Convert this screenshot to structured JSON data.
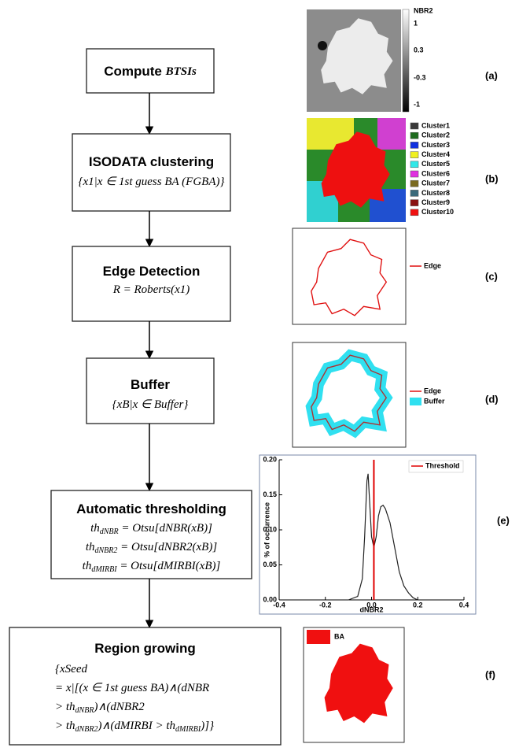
{
  "steps": [
    {
      "title": "Compute",
      "title_math": "BTSIs"
    },
    {
      "title": "ISODATA clustering",
      "formula": [
        [
          "{x1|x ∈ 1st guess BA (FGBA)}"
        ]
      ]
    },
    {
      "title": "Edge Detection",
      "formula": [
        [
          "R = Roberts(x1)"
        ]
      ]
    },
    {
      "title": "Buffer",
      "formula": [
        [
          "{xB|x ∈ Buffer}"
        ]
      ]
    },
    {
      "title": "Automatic thresholding",
      "formula": [
        [
          "th",
          "dNBR",
          " = Otsu[dNBR(xB)]"
        ],
        [
          "th",
          "dNBR2",
          " = Otsu[dNBR2(xB)]"
        ],
        [
          "th",
          "dMIRBI",
          " = Otsu[dMIRBI(xB)]"
        ]
      ]
    },
    {
      "title": "Region growing",
      "formula": [
        [
          "{xSeed"
        ],
        [
          "= x|[(x ∈ 1st guess BA)∧(dNBR"
        ],
        [
          "> th",
          "dNBR",
          ")∧(dNBR2"
        ],
        [
          "> th",
          "dNBR2",
          ")∧(dMIRBI > th",
          "dMIRBI",
          ")]}"
        ]
      ]
    }
  ],
  "panels": {
    "a": {
      "label": "(a)",
      "colorbar_title": "NBR2",
      "colorbar_ticks": [
        "1",
        "0.3",
        "-0.3",
        "-1"
      ]
    },
    "b": {
      "label": "(b)",
      "legend": [
        {
          "name": "Cluster1",
          "color": "#3a3a3a"
        },
        {
          "name": "Cluster2",
          "color": "#1e6b1e"
        },
        {
          "name": "Cluster3",
          "color": "#1030e0"
        },
        {
          "name": "Cluster4",
          "color": "#f0f020"
        },
        {
          "name": "Cluster5",
          "color": "#30e8e8"
        },
        {
          "name": "Cluster6",
          "color": "#e030e0"
        },
        {
          "name": "Cluster7",
          "color": "#7a6a20"
        },
        {
          "name": "Cluster8",
          "color": "#3a6a7a"
        },
        {
          "name": "Cluster9",
          "color": "#8a1010"
        },
        {
          "name": "Cluster10",
          "color": "#f01010"
        }
      ]
    },
    "c": {
      "label": "(c)",
      "legend": [
        "Edge"
      ]
    },
    "d": {
      "label": "(d)",
      "legend": [
        "Edge",
        "Buffer"
      ]
    },
    "e": {
      "label": "(e)"
    },
    "f": {
      "label": "(f)",
      "legend": [
        "BA"
      ]
    }
  },
  "chart_data": {
    "type": "line",
    "x_label": "dNBR2",
    "y_label": "% of occurrence",
    "x": [
      -0.1,
      -0.06,
      -0.04,
      -0.03,
      -0.02,
      -0.015,
      -0.01,
      0.0,
      0.01,
      0.02,
      0.03,
      0.04,
      0.05,
      0.06,
      0.08,
      0.1,
      0.12,
      0.14,
      0.16,
      0.18,
      0.2
    ],
    "series": [
      {
        "color": "#222222",
        "values": [
          0,
          0.005,
          0.03,
          0.09,
          0.17,
          0.18,
          0.15,
          0.09,
          0.075,
          0.09,
          0.12,
          0.133,
          0.135,
          0.13,
          0.11,
          0.075,
          0.04,
          0.02,
          0.01,
          0.003,
          0
        ]
      }
    ],
    "threshold": {
      "name": "Threshold",
      "value": 0.01,
      "color": "#e00000"
    },
    "xlim": [
      -0.4,
      0.4
    ],
    "ylim": [
      0,
      0.2
    ],
    "xticks": [
      -0.4,
      -0.2,
      {
        "value": 0,
        "label": "0.0"
      },
      0.2,
      0.4
    ],
    "yticks": [
      {
        "value": 0,
        "label": "0.00"
      },
      {
        "value": 0.05,
        "label": "0.05"
      },
      {
        "value": 0.1,
        "label": "0.10"
      },
      {
        "value": 0.15,
        "label": "0.15"
      },
      {
        "value": 0.2,
        "label": "0.20"
      }
    ]
  }
}
